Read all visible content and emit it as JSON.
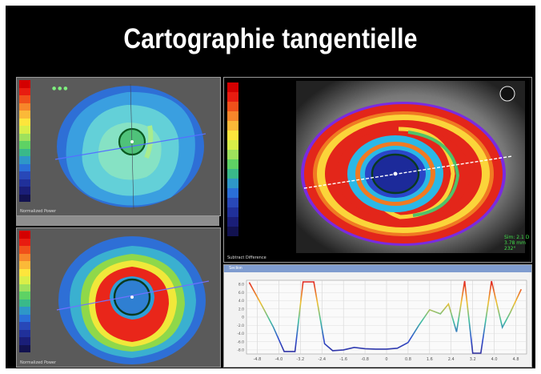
{
  "title": "Cartographie tangentielle",
  "colors": {
    "scale": [
      "#d40000",
      "#e81c10",
      "#f0501a",
      "#f7862a",
      "#fbb938",
      "#fde53c",
      "#d9ee48",
      "#9fe15c",
      "#5ed264",
      "#39b98a",
      "#2e97c8",
      "#2a6fd8",
      "#2848b8",
      "#20309a",
      "#1a1e78",
      "#121250"
    ]
  },
  "maps": {
    "top_left_caption": "Normalized Power",
    "bottom_left_caption": "Normalized Power",
    "right_caption": "Subtract Difference",
    "right_readout": [
      "Sim: 2.1 D",
      "3.78 mm",
      "232°"
    ]
  },
  "profile": {
    "title": "Section",
    "x_ticks": [
      "-4.8",
      "-4.0",
      "-3.2",
      "-2.4",
      "-1.6",
      "-0.8",
      "0",
      "0.8",
      "1.6",
      "2.4",
      "3.2",
      "4.0",
      "4.8"
    ],
    "y_ticks": [
      "8.0",
      "6.0",
      "4.0",
      "2.0",
      "0",
      "-2.0",
      "-4.0",
      "-6.0",
      "-8.0"
    ]
  },
  "chart_data": {
    "type": "line",
    "title": "",
    "xlabel": "",
    "ylabel": "",
    "xlim": [
      -5.2,
      5.2
    ],
    "ylim": [
      -9,
      9
    ],
    "x": [
      -5.1,
      -4.6,
      -4.2,
      -3.8,
      -3.4,
      -3.1,
      -2.7,
      -2.3,
      -2.0,
      -1.6,
      -1.2,
      -0.8,
      -0.4,
      0,
      0.4,
      0.8,
      1.2,
      1.6,
      2.0,
      2.3,
      2.6,
      2.9,
      3.2,
      3.5,
      3.9,
      4.3,
      4.6,
      5.0
    ],
    "series": [
      {
        "values": [
          8.5,
          2.5,
          -2.5,
          -8.4,
          -8.4,
          8.6,
          8.6,
          -6.5,
          -8.2,
          -8.0,
          -7.4,
          -7.7,
          -7.8,
          -7.8,
          -7.6,
          -6.2,
          -2.0,
          1.8,
          0.8,
          3.2,
          -3.6,
          8.8,
          -8.8,
          -8.8,
          8.8,
          -2.5,
          1.2,
          6.8
        ]
      }
    ]
  }
}
